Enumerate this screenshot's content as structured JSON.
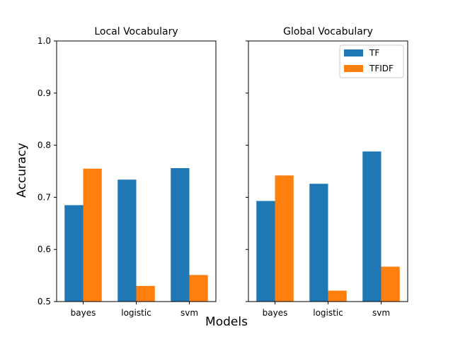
{
  "chart_data": [
    {
      "type": "bar",
      "title": "Local Vocabulary",
      "ylabel": "Accuracy",
      "categories": [
        "bayes",
        "logistic",
        "svm"
      ],
      "yticks": [
        "0.5",
        "0.6",
        "0.7",
        "0.8",
        "0.9",
        "1.0"
      ],
      "ylim": [
        0.5,
        1.0
      ],
      "series": [
        {
          "name": "TF",
          "color": "#1f77b4",
          "values": [
            0.685,
            0.734,
            0.756
          ]
        },
        {
          "name": "TFIDF",
          "color": "#ff7f0e",
          "values": [
            0.755,
            0.53,
            0.551
          ]
        }
      ]
    },
    {
      "type": "bar",
      "title": "Global Vocabulary",
      "categories": [
        "bayes",
        "logistic",
        "svm"
      ],
      "ylim": [
        0.5,
        1.0
      ],
      "legend_position": "top-right",
      "series": [
        {
          "name": "TF",
          "color": "#1f77b4",
          "values": [
            0.693,
            0.726,
            0.788
          ]
        },
        {
          "name": "TFIDF",
          "color": "#ff7f0e",
          "values": [
            0.742,
            0.521,
            0.567
          ]
        }
      ]
    }
  ],
  "xlabel": "Models",
  "legend": [
    {
      "label": "TF",
      "color": "#1f77b4"
    },
    {
      "label": "TFIDF",
      "color": "#ff7f0e"
    }
  ]
}
